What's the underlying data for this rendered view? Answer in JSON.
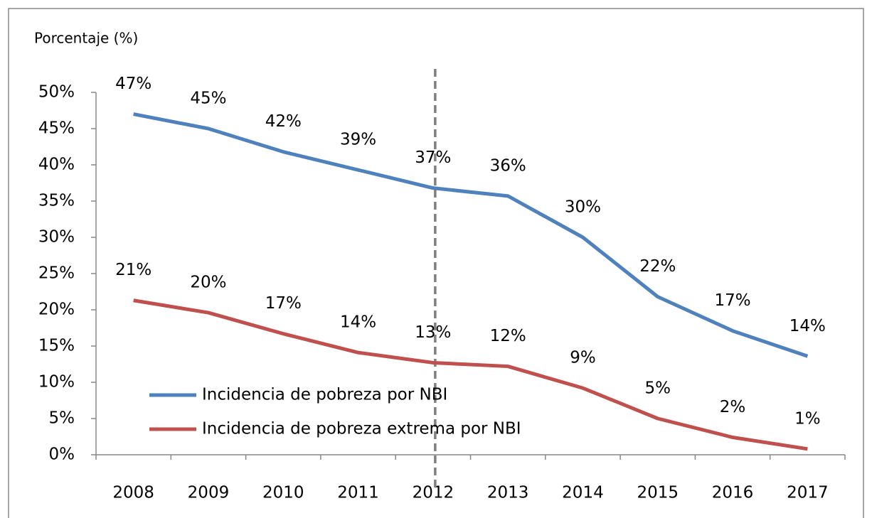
{
  "chart_data": {
    "type": "line",
    "y_axis_label": "Porcentaje (%)",
    "categories": [
      "2008",
      "2009",
      "2010",
      "2011",
      "2012",
      "2013",
      "2014",
      "2015",
      "2016",
      "2017"
    ],
    "series": [
      {
        "name": "Incidencia de pobreza por NBI",
        "color": "#4f81bd",
        "values": [
          47,
          45,
          41.8,
          39.3,
          36.8,
          35.7,
          30,
          21.8,
          17.1,
          13.6
        ],
        "value_labels": [
          "47%",
          "45%",
          "42%",
          "39%",
          "37%",
          "36%",
          "30%",
          "22%",
          "17%",
          "14%"
        ]
      },
      {
        "name": "Incidencia de pobreza extrema por NBI",
        "color": "#c0504d",
        "values": [
          21.3,
          19.6,
          16.7,
          14.1,
          12.7,
          12.2,
          9.2,
          5.0,
          2.4,
          0.8
        ],
        "value_labels": [
          "21%",
          "20%",
          "17%",
          "14%",
          "13%",
          "12%",
          "9%",
          "5%",
          "2%",
          "1%"
        ]
      }
    ],
    "ylim": [
      0,
      50
    ],
    "yticks": [
      {
        "value": 0,
        "label": "0%"
      },
      {
        "value": 5,
        "label": "5%"
      },
      {
        "value": 10,
        "label": "10%"
      },
      {
        "value": 15,
        "label": "15%"
      },
      {
        "value": 20,
        "label": "20%"
      },
      {
        "value": 25,
        "label": "25%"
      },
      {
        "value": 30,
        "label": "30%"
      },
      {
        "value": 35,
        "label": "35%"
      },
      {
        "value": 40,
        "label": "40%"
      },
      {
        "value": 45,
        "label": "45%"
      },
      {
        "value": 50,
        "label": "50%"
      }
    ],
    "grid": false,
    "legend": "lower-left",
    "vline_category": "2012"
  }
}
